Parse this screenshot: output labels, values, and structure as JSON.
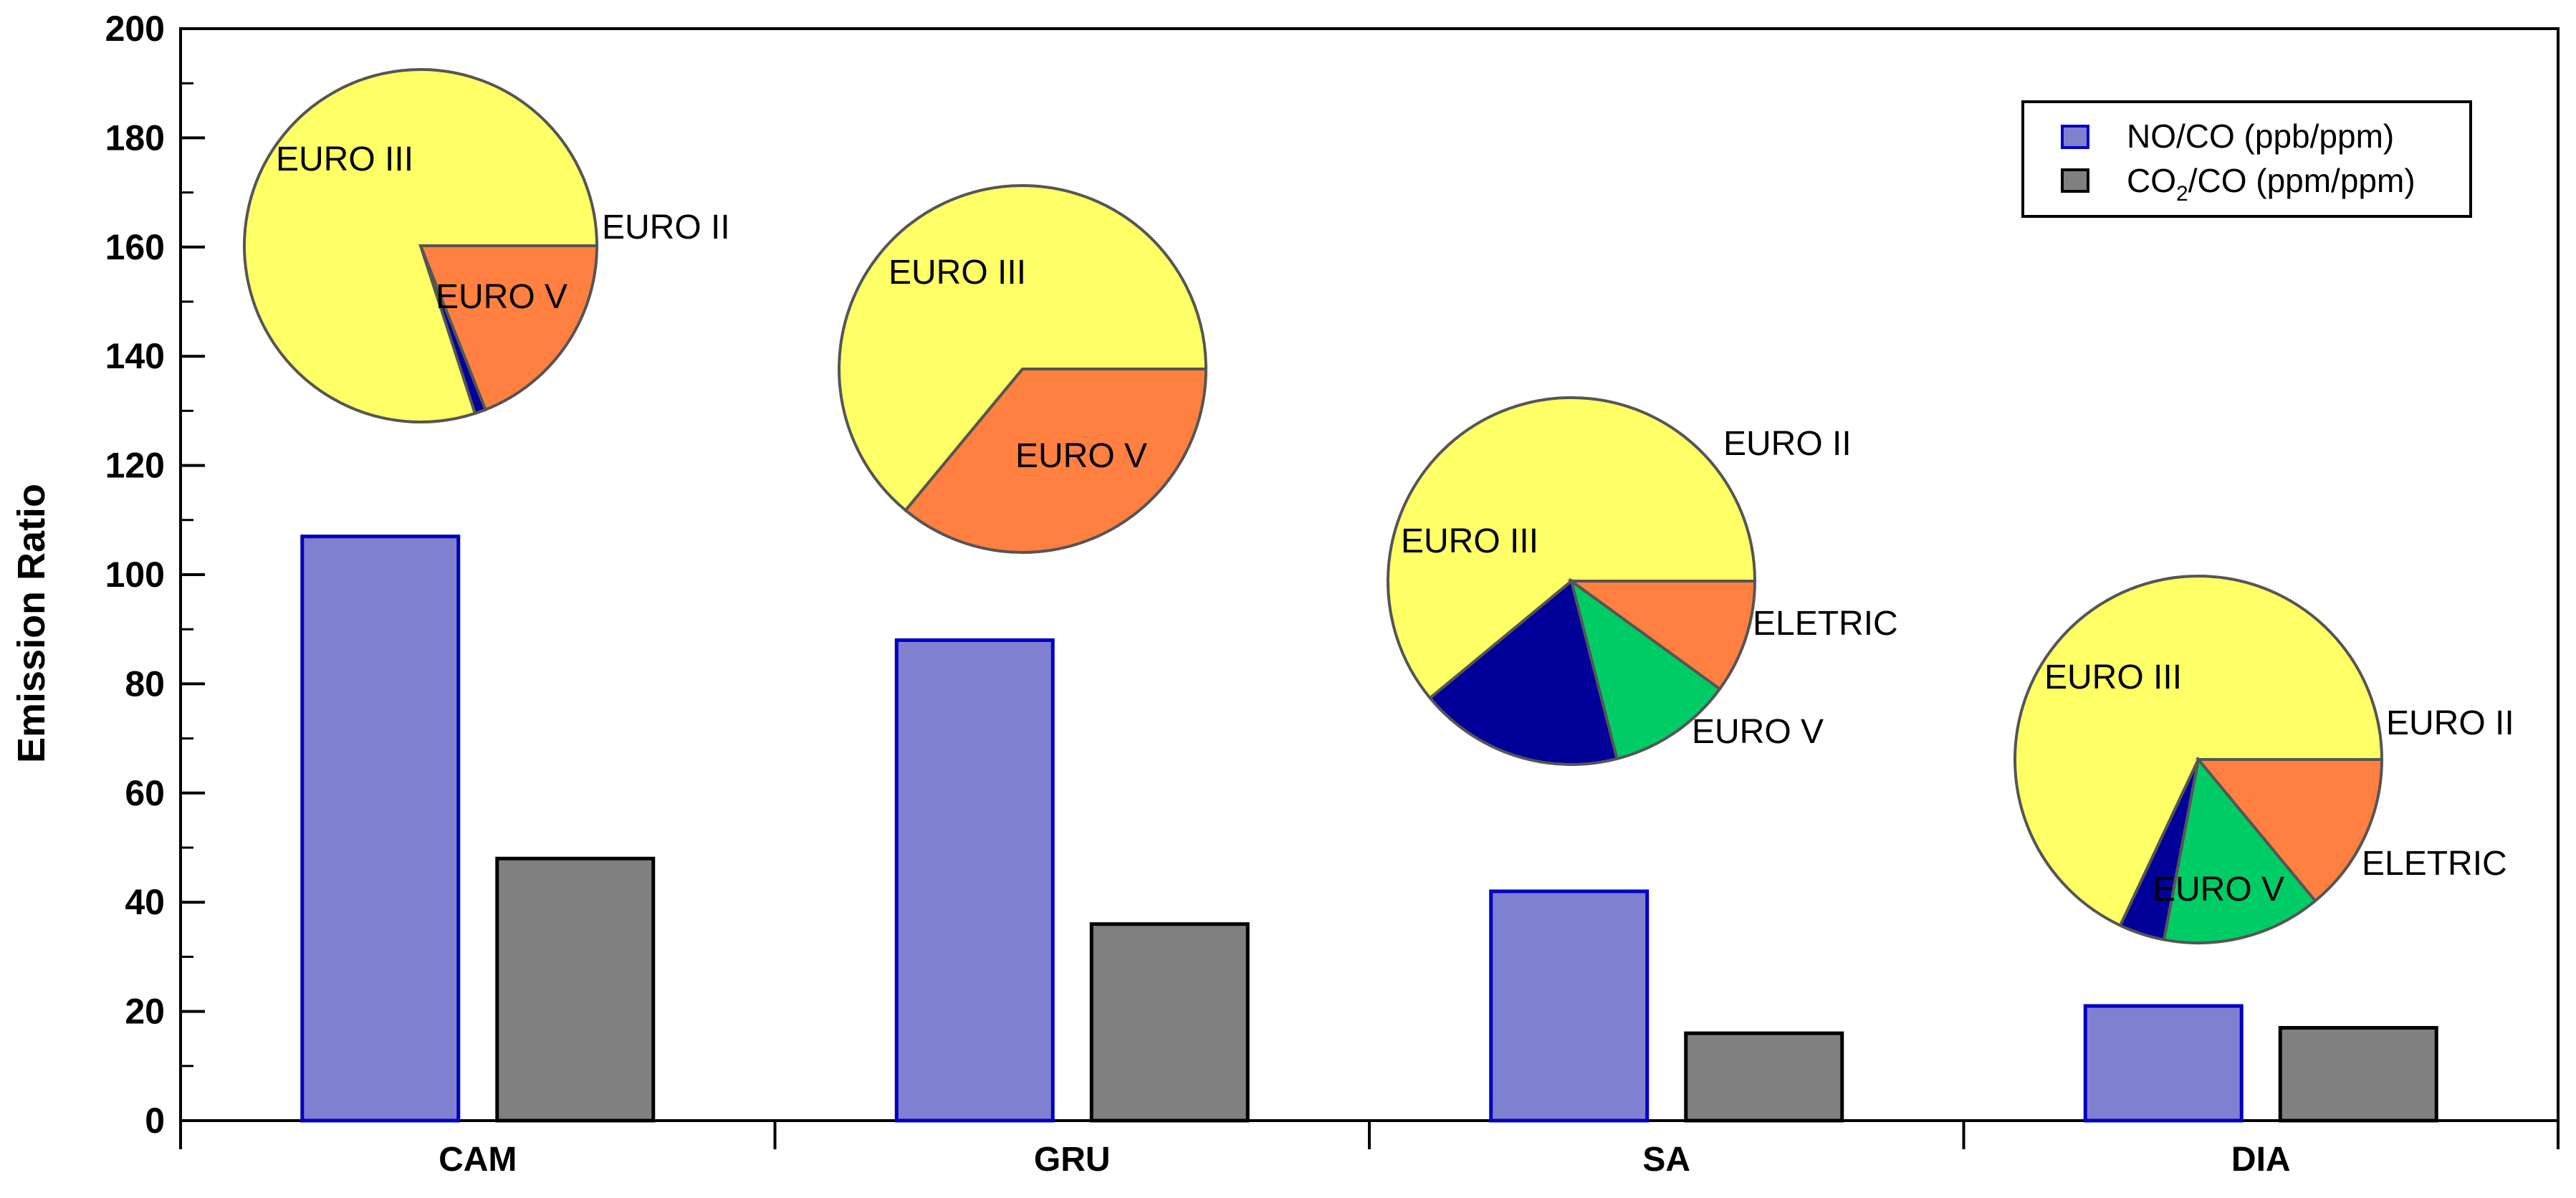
{
  "chart_data": {
    "type": "bar",
    "title": "",
    "xlabel": "",
    "ylabel": "Emission Ratio",
    "ylim": [
      0,
      200
    ],
    "yticks": [
      0,
      20,
      40,
      60,
      80,
      100,
      120,
      140,
      160,
      180,
      200
    ],
    "categories": [
      "CAM",
      "GRU",
      "SA",
      "DIA"
    ],
    "series": [
      {
        "name": "NO/CO (ppb/ppm)",
        "values": [
          107,
          88,
          42,
          21
        ],
        "color": "#8080d0",
        "edge": "#0000c0"
      },
      {
        "name": "CO2/CO (ppm/ppm)",
        "values": [
          48,
          36,
          16,
          17
        ],
        "color": "#808080",
        "edge": "#000000"
      }
    ],
    "legend": {
      "position": "top-right",
      "entries": [
        {
          "main": "NO/CO (ppb/ppm)"
        },
        {
          "pre": "CO",
          "sub": "2",
          "post": "/CO (ppm/ppm)"
        }
      ]
    },
    "pies": [
      {
        "category": "CAM",
        "slices": [
          {
            "label": "EURO III",
            "value": 80,
            "color": "#ffff66"
          },
          {
            "label": "EURO II",
            "value": 1,
            "color": "#000099"
          },
          {
            "label": "EURO V",
            "value": 19,
            "color": "#ff8040"
          }
        ]
      },
      {
        "category": "GRU",
        "slices": [
          {
            "label": "EURO III",
            "value": 64,
            "color": "#ffff66"
          },
          {
            "label": "EURO V",
            "value": 36,
            "color": "#ff8040"
          }
        ]
      },
      {
        "category": "SA",
        "slices": [
          {
            "label": "EURO III",
            "value": 61,
            "color": "#ffff66"
          },
          {
            "label": "EURO II",
            "value": 18,
            "color": "#000099"
          },
          {
            "label": "ELETRIC",
            "value": 11,
            "color": "#00cc66"
          },
          {
            "label": "EURO V",
            "value": 10,
            "color": "#ff8040"
          }
        ]
      },
      {
        "category": "DIA",
        "slices": [
          {
            "label": "EURO III",
            "value": 68,
            "color": "#ffff66"
          },
          {
            "label": "EURO II",
            "value": 4,
            "color": "#000099"
          },
          {
            "label": "ELETRIC",
            "value": 14,
            "color": "#00cc66"
          },
          {
            "label": "EURO V",
            "value": 14,
            "color": "#ff8040"
          }
        ]
      }
    ]
  }
}
